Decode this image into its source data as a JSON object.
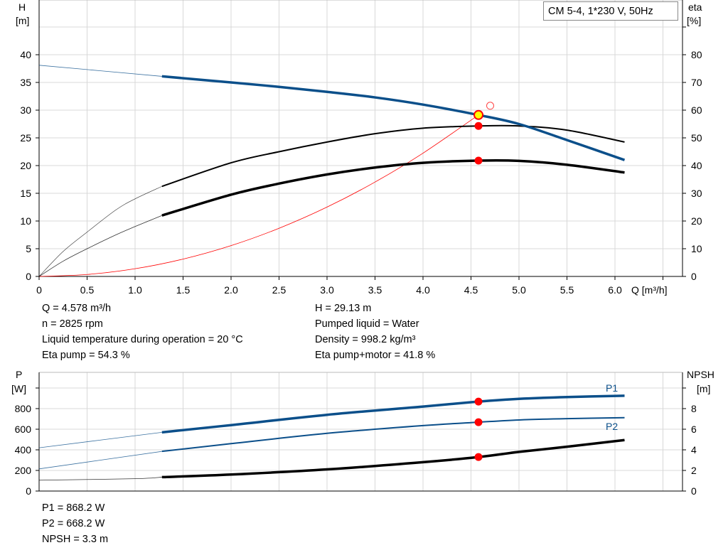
{
  "chart_data": [
    {
      "type": "line",
      "title": "CM 5-4, 1*230 V, 50Hz",
      "xlabel": "Q [m³/h]",
      "ylabel": "H\n[m]",
      "y2label": "eta\n[%]",
      "xlim": [
        0,
        7
      ],
      "ylim": [
        0,
        50
      ],
      "y2lim": [
        0,
        100
      ],
      "xticks": [
        "0",
        "0.5",
        "1.0",
        "1.5",
        "2.0",
        "2.5",
        "3.0",
        "3.5",
        "4.0",
        "4.5",
        "5.0",
        "5.5",
        "6.0"
      ],
      "yticks": [
        "0",
        "5",
        "10",
        "15",
        "20",
        "25",
        "30",
        "35",
        "40"
      ],
      "y2ticks": [
        "0",
        "10",
        "20",
        "30",
        "40",
        "50",
        "60",
        "70",
        "80"
      ],
      "grid": true,
      "series": [
        {
          "key": "H",
          "axis": "left",
          "color": "#0b4f8a",
          "x": [
            0,
            1.28,
            2,
            2.5,
            3,
            3.5,
            4,
            4.578,
            5,
            5.5,
            6.1
          ],
          "y": [
            38.1,
            36.1,
            35,
            34.2,
            33.3,
            32.3,
            31,
            29.13,
            27.5,
            24.6,
            21
          ]
        },
        {
          "key": "eta_pump",
          "axis": "right",
          "color": "#000000",
          "x": [
            0,
            0.25,
            0.5,
            0.8,
            1.0,
            1.28,
            2,
            2.5,
            3,
            3.5,
            4,
            4.578,
            5,
            5.5,
            6.1
          ],
          "y": [
            0,
            9,
            16,
            24,
            28,
            32.5,
            41,
            45,
            48.5,
            51.5,
            53.5,
            54.3,
            54.3,
            52.8,
            48.5
          ]
        },
        {
          "key": "eta_pump_motor",
          "axis": "right",
          "color": "#000000",
          "x": [
            0,
            0.25,
            0.5,
            0.8,
            1.0,
            1.28,
            2,
            2.5,
            3,
            3.5,
            4,
            4.578,
            5,
            5.5,
            6.1
          ],
          "y": [
            0,
            5.5,
            10,
            15,
            18,
            22,
            29.5,
            33.5,
            36.8,
            39.3,
            41,
            41.8,
            41.7,
            40.3,
            37.5
          ]
        },
        {
          "key": "system_curve",
          "axis": "left",
          "color": "#ff0000",
          "x": [
            0,
            0.5,
            1,
            1.5,
            2,
            2.5,
            3,
            3.5,
            4,
            4.578
          ],
          "y": [
            0,
            0.35,
            1.39,
            3.13,
            5.56,
            8.69,
            12.51,
            17.03,
            22.24,
            29.13
          ]
        }
      ],
      "duty_point": {
        "Q": 4.578,
        "H": 29.13,
        "eta_pump": 54.3,
        "eta_pump_motor": 41.8
      },
      "hollow_point": {
        "Q": 4.7,
        "H": 30.8
      }
    },
    {
      "type": "line",
      "ylabel": "P\n[W]",
      "y2label": "NPSH\n[m]",
      "xlim": [
        0,
        7
      ],
      "ylim": [
        0,
        1150
      ],
      "y2lim": [
        0,
        11.5
      ],
      "yticks": [
        "0",
        "200",
        "400",
        "600",
        "800"
      ],
      "y2ticks": [
        "0",
        "2",
        "4",
        "6",
        "8"
      ],
      "grid": true,
      "series": [
        {
          "name": "P1",
          "axis": "left",
          "color": "#0b4f8a",
          "x": [
            0,
            1.28,
            2,
            3,
            4,
            4.578,
            5,
            5.5,
            6.1
          ],
          "y": [
            420,
            570,
            640,
            740,
            820,
            868.2,
            895,
            912,
            925
          ]
        },
        {
          "name": "P2",
          "axis": "left",
          "color": "#0b4f8a",
          "x": [
            0,
            1.28,
            2,
            3,
            4,
            4.578,
            5,
            5.5,
            6.1
          ],
          "y": [
            215,
            385,
            460,
            560,
            635,
            668.2,
            690,
            703,
            712
          ]
        },
        {
          "key": "NPSH",
          "axis": "right",
          "color": "#000000",
          "x": [
            0,
            1,
            1.28,
            2,
            3,
            4,
            4.578,
            5,
            5.5,
            6.1
          ],
          "y": [
            1.05,
            1.2,
            1.35,
            1.6,
            2.1,
            2.8,
            3.3,
            3.8,
            4.3,
            4.95
          ]
        }
      ]
    }
  ],
  "info_top_left": [
    "Q = 4.578 m³/h",
    "n = 2825 rpm",
    "Liquid temperature during operation = 20 °C",
    "Eta pump = 54.3 %"
  ],
  "info_top_right": [
    "H = 29.13 m",
    "Pumped liquid = Water",
    "Density = 998.2 kg/m³",
    "Eta pump+motor = 41.8 %"
  ],
  "info_bottom": [
    "P1 = 868.2 W",
    "P2 = 668.2 W",
    "NPSH = 3.3 m"
  ]
}
